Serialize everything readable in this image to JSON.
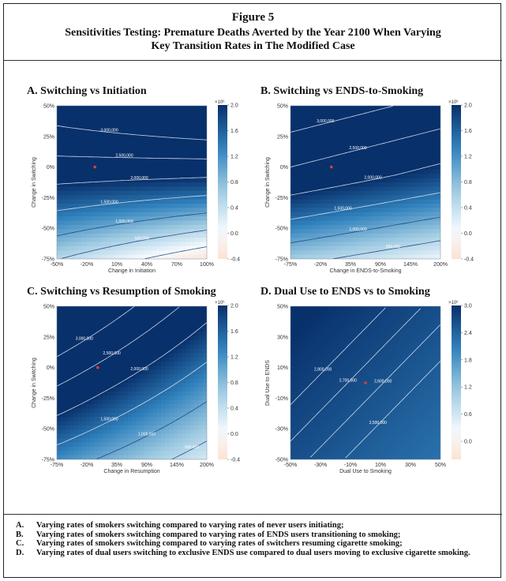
{
  "figure": {
    "number": "Figure 5",
    "title_line1": "Sensitivities Testing: Premature Deaths Averted by the Year 2100 When Varying",
    "title_line2": "Key Transition Rates in The Modified Case"
  },
  "chart_data": [
    {
      "type": "heatmap",
      "panel_title": "A. Switching vs Initiation",
      "xlabel": "Change in Initiation",
      "ylabel": "Change in Switching",
      "x_ticks": [
        "-50%",
        "-20%",
        "10%",
        "40%",
        "70%",
        "100%"
      ],
      "y_ticks": [
        "50%",
        "25%",
        "0%",
        "-25%",
        "-50%",
        "-75%"
      ],
      "xlim": [
        -50,
        100
      ],
      "ylim": [
        -75,
        50
      ],
      "colorbar": {
        "ticks": [
          "2.0",
          "1.6",
          "1.2",
          "0.8",
          "0.4",
          "0.0",
          "-0.4"
        ],
        "range": [
          -0.4,
          2.0
        ],
        "exponent": "×10⁶"
      },
      "contours": [
        {
          "label": "3,000,000",
          "level": 3.0
        },
        {
          "label": "2,500,000",
          "level": 2.5
        },
        {
          "label": "2,000,000",
          "level": 2.0
        },
        {
          "label": "1,500,000",
          "level": 1.5
        },
        {
          "label": "1,000,000",
          "level": 1.0
        },
        {
          "label": "500,000",
          "level": 0.5
        },
        {
          "label": "0",
          "level": 0.0
        }
      ],
      "marker": {
        "x": -12,
        "y": 0
      }
    },
    {
      "type": "heatmap",
      "panel_title": "B. Switching vs ENDS-to-Smoking",
      "xlabel": "Change in ENDS-to-Smoking",
      "ylabel": "Change in Switching",
      "x_ticks": [
        "-75%",
        "-20%",
        "35%",
        "90%",
        "145%",
        "200%"
      ],
      "y_ticks": [
        "50%",
        "25%",
        "0%",
        "-25%",
        "-50%",
        "-75%"
      ],
      "xlim": [
        -75,
        200
      ],
      "ylim": [
        -75,
        50
      ],
      "colorbar": {
        "ticks": [
          "2.0",
          "1.6",
          "1.2",
          "0.8",
          "0.4",
          "0.0",
          "-0.4"
        ],
        "range": [
          -0.4,
          2.0
        ],
        "exponent": "×10⁶"
      },
      "contours": [
        {
          "label": "3,000,000",
          "level": 3.0
        },
        {
          "label": "2,500,000",
          "level": 2.5
        },
        {
          "label": "2,000,000",
          "level": 2.0
        },
        {
          "label": "1,500,000",
          "level": 1.5
        },
        {
          "label": "1,000,000",
          "level": 1.0
        },
        {
          "label": "500,000",
          "level": 0.5
        }
      ],
      "marker": {
        "x": 0,
        "y": 0
      }
    },
    {
      "type": "heatmap",
      "panel_title": "C. Switching vs Resumption of Smoking",
      "xlabel": "Change in Resumption",
      "ylabel": "Change in Switching",
      "x_ticks": [
        "-75%",
        "-20%",
        "35%",
        "90%",
        "145%",
        "200%"
      ],
      "y_ticks": [
        "50%",
        "25%",
        "0%",
        "-25%",
        "-50%",
        "-75%"
      ],
      "xlim": [
        -75,
        200
      ],
      "ylim": [
        -75,
        50
      ],
      "colorbar": {
        "ticks": [
          "2.0",
          "1.6",
          "1.2",
          "0.8",
          "0.4",
          "0.0",
          "-0.4"
        ],
        "range": [
          -0.4,
          2.0
        ],
        "exponent": "×10⁶"
      },
      "contours": [
        {
          "label": "3,000,000",
          "level": 3.0
        },
        {
          "label": "2,500,000",
          "level": 2.5
        },
        {
          "label": "2,000,000",
          "level": 2.0
        },
        {
          "label": "1,500,000",
          "level": 1.5
        },
        {
          "label": "1,000,000",
          "level": 1.0
        },
        {
          "label": "500,000",
          "level": 0.5
        }
      ],
      "marker": {
        "x": 0,
        "y": 0
      }
    },
    {
      "type": "heatmap",
      "panel_title": "D. Dual Use to ENDS vs to Smoking",
      "xlabel": "Dual Use to Smoking",
      "ylabel": "Dual Use to ENDS",
      "x_ticks": [
        "-50%",
        "-30%",
        "-10%",
        "10%",
        "30%",
        "50%"
      ],
      "y_ticks": [
        "50%",
        "30%",
        "10%",
        "-10%",
        "-30%",
        "-50%"
      ],
      "xlim": [
        -50,
        50
      ],
      "ylim": [
        -50,
        50
      ],
      "colorbar": {
        "ticks": [
          "3.0",
          "2.4",
          "1.8",
          "1.2",
          "0.6",
          "0.0"
        ],
        "range": [
          -0.4,
          3.0
        ],
        "exponent": "×10⁶"
      },
      "contours": [
        {
          "label": "2,800,000",
          "level": 2.8
        },
        {
          "label": "2,700,000",
          "level": 2.7
        },
        {
          "label": "2,600,000",
          "level": 2.6
        },
        {
          "label": "2,500,000",
          "level": 2.5
        }
      ],
      "marker": {
        "x": 0,
        "y": 0
      }
    }
  ],
  "notes": [
    {
      "letter": "A.",
      "text": "Varying rates of smokers switching compared to varying rates of never users initiating;"
    },
    {
      "letter": "B.",
      "text": "Varying rates of smokers switching compared to varying rates of ENDS users transitioning to smoking;"
    },
    {
      "letter": "C.",
      "text": "Varying rates of smokers switching compared to varying rates of switchers resuming cigarette smoking;"
    },
    {
      "letter": "D.",
      "text": "Varying rates of dual users switching to exclusive ENDS use compared to dual users moving to exclusive cigarette smoking."
    }
  ]
}
